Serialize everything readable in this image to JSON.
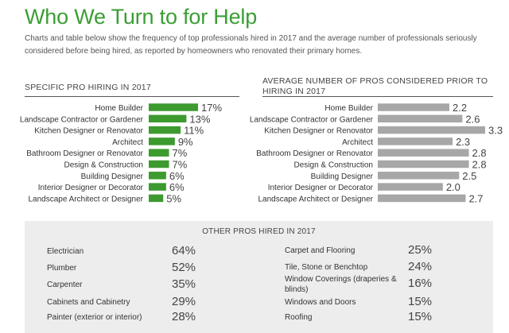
{
  "page": {
    "title": "Who We Turn to for Help",
    "subtitle": "Charts and table below show the frequency of top professionals hired in 2017 and the average number of professionals seriously considered before being hired, as reported by homeowners who renovated their primary homes."
  },
  "colors": {
    "title": "#3b9e35",
    "left_bars": "#3d9a2f",
    "right_bars": "#a7a7a7",
    "panel_bg": "#ededed"
  },
  "chart_data": [
    {
      "type": "bar",
      "orientation": "horizontal",
      "title": "SPECIFIC PRO HIRING IN 2017",
      "categories": [
        "Home Builder",
        "Landscape Contractor or Gardener",
        "Kitchen Designer or Renovator",
        "Architect",
        "Bathroom Designer or Renovator",
        "Design & Construction",
        "Building Designer",
        "Interior Designer or Decorator",
        "Landscape Architect or Designer"
      ],
      "values": [
        17,
        13,
        11,
        9,
        7,
        7,
        6,
        6,
        5
      ],
      "value_labels": [
        "17%",
        "13%",
        "11%",
        "9%",
        "7%",
        "7%",
        "6%",
        "6%",
        "5%"
      ],
      "xlim": [
        0,
        17
      ],
      "grid": false
    },
    {
      "type": "bar",
      "orientation": "horizontal",
      "title": "AVERAGE NUMBER OF PROS CONSIDERED PRIOR TO HIRING IN 2017",
      "categories": [
        "Home Builder",
        "Landscape Contractor or Gardener",
        "Kitchen Designer or Renovator",
        "Architect",
        "Bathroom Designer or Renovator",
        "Design & Construction",
        "Building Designer",
        "Interior Designer or Decorator",
        "Landscape Architect or Designer"
      ],
      "values": [
        2.2,
        2.6,
        3.3,
        2.3,
        2.8,
        2.8,
        2.5,
        2.0,
        2.7
      ],
      "value_labels": [
        "2.2",
        "2.6",
        "3.3",
        "2.3",
        "2.8",
        "2.8",
        "2.5",
        "2.0",
        "2.7"
      ],
      "xlim": [
        0,
        3.3
      ],
      "grid": false
    },
    {
      "type": "table",
      "title": "OTHER PROS HIRED IN 2017",
      "columns": [
        [
          {
            "label": "Electrician",
            "value": "64%"
          },
          {
            "label": "Plumber",
            "value": "52%"
          },
          {
            "label": "Carpenter",
            "value": "35%"
          },
          {
            "label": "Cabinets and Cabinetry",
            "value": "29%"
          },
          {
            "label": "Painter (exterior or interior)",
            "value": "28%"
          }
        ],
        [
          {
            "label": "Carpet and Flooring",
            "value": "25%"
          },
          {
            "label": "Tile, Stone or Benchtop",
            "value": "24%"
          },
          {
            "label": "Window Coverings (draperies & blinds)",
            "value": "16%"
          },
          {
            "label": "Windows and Doors",
            "value": "15%"
          },
          {
            "label": "Roofing",
            "value": "15%"
          }
        ]
      ]
    }
  ]
}
